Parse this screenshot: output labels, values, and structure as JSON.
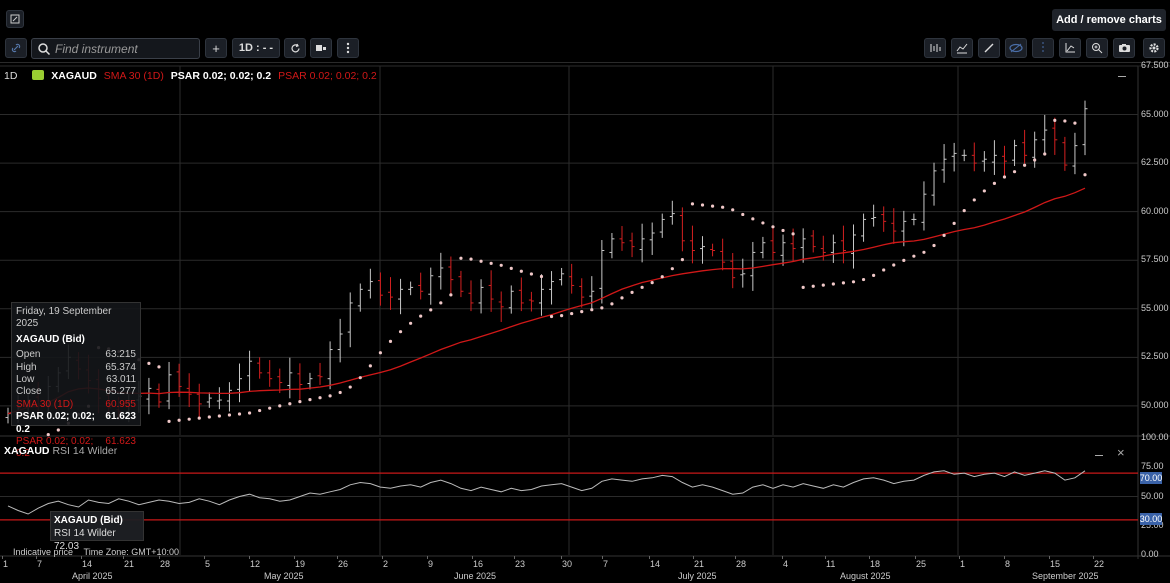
{
  "header": {
    "add_remove_label": "Add / remove charts"
  },
  "toolbar": {
    "search_placeholder": "Find instrument",
    "add_label": "+",
    "timeframe_label": "1D : - -"
  },
  "legend": {
    "timeframe": "1D",
    "symbol": "XAGAUD",
    "sma": "SMA 30 (1D)",
    "psar_white": "PSAR 0.02; 0.02; 0.2",
    "psar_red": "PSAR 0.02; 0.02; 0.2"
  },
  "tooltip": {
    "date": "Friday, 19 September 2025",
    "title": "XAGAUD (Bid)",
    "rows": [
      {
        "label": "Open",
        "value": "63.215"
      },
      {
        "label": "High",
        "value": "65.374"
      },
      {
        "label": "Low",
        "value": "63.011"
      },
      {
        "label": "Close",
        "value": "65.277"
      },
      {
        "label": "SMA 30 (1D)",
        "value": "60.955"
      },
      {
        "label": "PSAR 0.02; 0.02; 0.2",
        "value": "61.623"
      },
      {
        "label": "PSAR 0.02; 0.02; 0.2",
        "value": "61.623"
      }
    ]
  },
  "rsi_panel": {
    "title_symbol": "XAGAUD",
    "title_indicator": "RSI 14 Wilder",
    "tooltip_title": "XAGAUD (Bid)",
    "tooltip_value": "RSI 14 Wilder 72.03",
    "upper": "70.00",
    "lower": "30.00",
    "axis": [
      "100.00",
      "75.00",
      "50.00",
      "25.00",
      "0.00"
    ]
  },
  "footer": {
    "indicative": "Indicative price",
    "timezone": "Time Zone: GMT+10:00"
  },
  "price_axis": [
    "67.500",
    "65.000",
    "62.500",
    "60.000",
    "57.500",
    "55.000",
    "52.500",
    "50.000"
  ],
  "x_days": [
    "1",
    "7",
    "14",
    "21",
    "28",
    "5",
    "12",
    "19",
    "26",
    "2",
    "9",
    "16",
    "23",
    "30",
    "7",
    "14",
    "21",
    "28",
    "4",
    "11",
    "18",
    "25",
    "1",
    "8",
    "15",
    "22"
  ],
  "x_months": [
    "April 2025",
    "May 2025",
    "June 2025",
    "July 2025",
    "August 2025",
    "September 2025"
  ],
  "colors": {
    "bg": "#000000",
    "sma": "#d01818",
    "psar": "#f0c8c8",
    "up_candle": "#c8c8c8",
    "down_candle": "#d42020",
    "rsi_band": "#c81818"
  },
  "chart_data": {
    "type": "candlestick",
    "symbol": "XAGAUD",
    "yrange": [
      48.5,
      67.5
    ],
    "closes": [
      49.6,
      49.9,
      50.3,
      50.1,
      51.0,
      51.7,
      52.5,
      51.9,
      51.3,
      50.4,
      49.9,
      49.7,
      50.2,
      50.5,
      50.9,
      50.2,
      51.6,
      51.0,
      50.6,
      50.1,
      50.4,
      50.3,
      50.8,
      51.4,
      52.3,
      51.7,
      51.4,
      51.2,
      51.7,
      51.1,
      51.4,
      51.5,
      52.9,
      53.7,
      55.3,
      56.0,
      56.4,
      55.7,
      55.6,
      56.0,
      56.1,
      55.9,
      56.7,
      57.1,
      56.5,
      55.9,
      55.3,
      56.1,
      55.5,
      55.1,
      55.9,
      55.3,
      55.4,
      56.0,
      56.4,
      56.8,
      56.2,
      55.6,
      55.9,
      58.0,
      58.6,
      58.4,
      58.2,
      58.6,
      58.9,
      59.6,
      59.9,
      58.5,
      58.0,
      58.2,
      58.0,
      57.4,
      56.6,
      56.8,
      57.9,
      58.4,
      57.9,
      58.4,
      58.1,
      58.6,
      58.2,
      57.9,
      58.4,
      58.0,
      58.8,
      59.6,
      59.7,
      59.5,
      59.0,
      59.5,
      59.6,
      60.9,
      62.1,
      62.7,
      63.0,
      62.9,
      62.5,
      62.7,
      62.9,
      62.6,
      63.4,
      62.9,
      63.7,
      64.2,
      63.7,
      62.4,
      63.4,
      65.3
    ],
    "rsi": [
      42,
      38,
      35,
      40,
      44,
      46,
      43,
      41,
      47,
      45,
      44,
      48,
      46,
      43,
      45,
      47,
      46,
      44,
      45,
      48,
      46,
      43,
      47,
      50,
      52,
      49,
      48,
      46,
      47,
      50,
      53,
      52,
      54,
      56,
      60,
      62,
      61,
      58,
      57,
      59,
      60,
      58,
      62,
      64,
      61,
      57,
      55,
      58,
      56,
      54,
      57,
      55,
      56,
      59,
      60,
      61,
      58,
      55,
      57,
      63,
      65,
      64,
      63,
      65,
      66,
      68,
      67,
      62,
      58,
      60,
      58,
      55,
      52,
      53,
      58,
      60,
      57,
      60,
      58,
      61,
      59,
      57,
      60,
      58,
      62,
      65,
      66,
      64,
      61,
      63,
      64,
      68,
      71,
      72,
      69,
      70,
      67,
      69,
      70,
      67,
      71,
      68,
      70,
      72,
      70,
      64,
      66,
      72
    ]
  }
}
